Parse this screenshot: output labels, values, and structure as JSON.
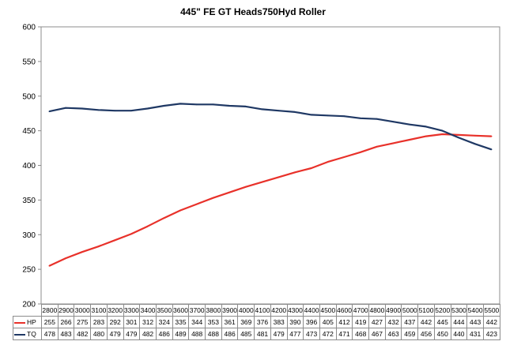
{
  "chart_data": {
    "type": "line",
    "title": "445\" FE GT Heads750Hyd Roller",
    "x": [
      2800,
      2900,
      3000,
      3100,
      3200,
      3300,
      3400,
      3500,
      3600,
      3700,
      3800,
      3900,
      4000,
      4100,
      4200,
      4300,
      4400,
      4500,
      4600,
      4700,
      4800,
      4900,
      5000,
      5100,
      5200,
      5300,
      5400,
      5500
    ],
    "series": [
      {
        "name": "HP",
        "color": "#e8312a",
        "values": [
          255,
          266,
          275,
          283,
          292,
          301,
          312,
          324,
          335,
          344,
          353,
          361,
          369,
          376,
          383,
          390,
          396,
          405,
          412,
          419,
          427,
          432,
          437,
          442,
          445,
          444,
          443,
          442
        ]
      },
      {
        "name": "TQ",
        "color": "#1f3864",
        "values": [
          478,
          483,
          482,
          480,
          479,
          479,
          482,
          486,
          489,
          488,
          488,
          486,
          485,
          481,
          479,
          477,
          473,
          472,
          471,
          468,
          467,
          463,
          459,
          456,
          450,
          440,
          431,
          423
        ]
      }
    ],
    "ylim": [
      200,
      600
    ],
    "yticks": [
      200,
      250,
      300,
      350,
      400,
      450,
      500,
      550,
      600
    ],
    "grid": false,
    "legend": "data-table"
  }
}
